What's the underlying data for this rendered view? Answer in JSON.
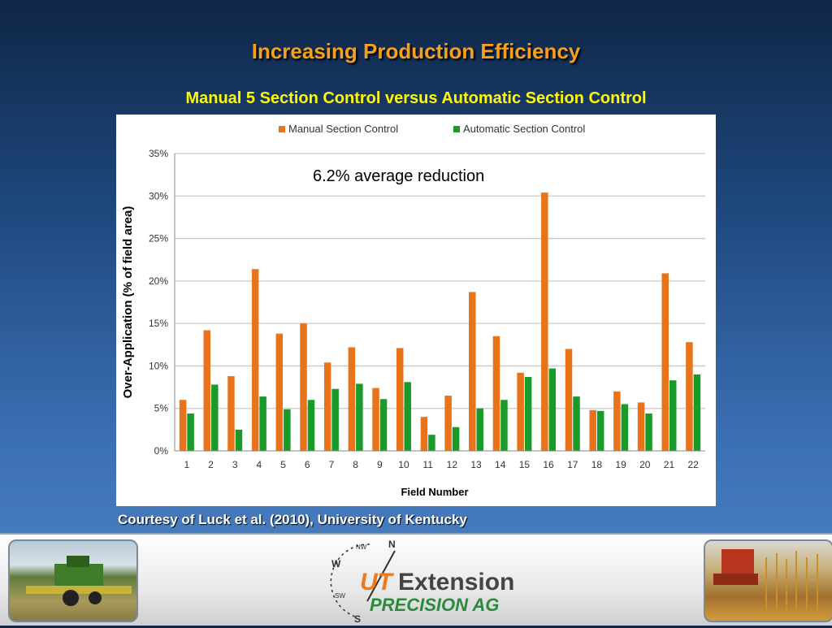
{
  "slide": {
    "title": "Increasing Production Efficiency",
    "subtitle": "Manual 5 Section Control versus Automatic Section Control",
    "courtesy": "Courtesy of Luck et al. (2010), University of Kentucky"
  },
  "logo": {
    "ut_mark": "UT",
    "name": "Extension",
    "program": "PRECISION AG",
    "compass_labels": [
      "N",
      "NW",
      "W",
      "SW",
      "S"
    ]
  },
  "colors": {
    "manual": "#e8731a",
    "automatic": "#1a9a28",
    "title": "#f7a11a",
    "subtitle": "#ffff00"
  },
  "chart_data": {
    "type": "bar",
    "categories": [
      "1",
      "2",
      "3",
      "4",
      "5",
      "6",
      "7",
      "8",
      "9",
      "10",
      "11",
      "12",
      "13",
      "14",
      "15",
      "16",
      "17",
      "18",
      "19",
      "20",
      "21",
      "22"
    ],
    "series": [
      {
        "name": "Manual Section Control",
        "values": [
          6.0,
          14.2,
          8.8,
          21.4,
          13.8,
          15.0,
          10.4,
          12.2,
          7.4,
          12.1,
          4.0,
          6.5,
          18.7,
          13.5,
          9.2,
          30.4,
          12.0,
          4.8,
          7.0,
          5.7,
          20.9,
          12.8
        ]
      },
      {
        "name": "Automatic Section Control",
        "values": [
          4.4,
          7.8,
          2.5,
          6.4,
          4.9,
          6.0,
          7.3,
          7.9,
          6.1,
          8.1,
          1.9,
          2.8,
          5.0,
          6.0,
          8.7,
          9.7,
          6.4,
          4.7,
          5.5,
          4.4,
          8.3,
          9.0
        ]
      }
    ],
    "xlabel": "Field Number",
    "ylabel": "Over-Application (% of field area)",
    "ylim": [
      0,
      35
    ],
    "yticks": [
      "0%",
      "5%",
      "10%",
      "15%",
      "20%",
      "25%",
      "30%",
      "35%"
    ],
    "annotation": "6.2% average reduction",
    "legend_position": "top",
    "grid": true
  }
}
